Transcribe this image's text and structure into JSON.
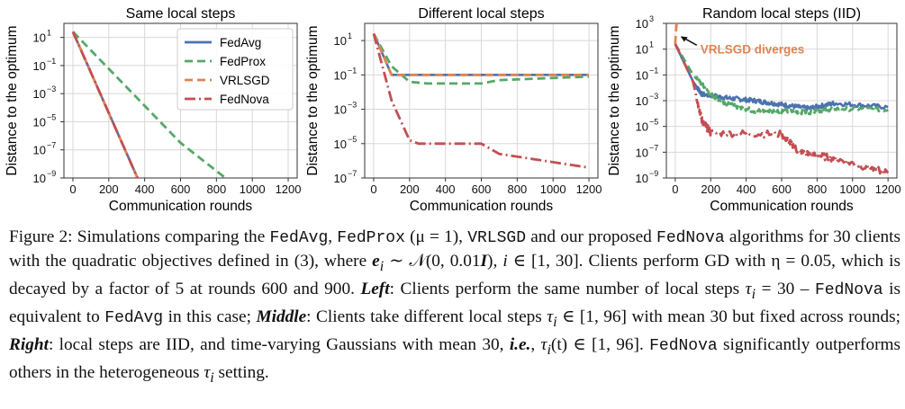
{
  "figure": {
    "colors": {
      "FedAvg": "#4c72b0",
      "FedProx": "#55a868",
      "VRLSGD": "#dd8452",
      "FedNova": "#c44e52"
    },
    "annotation": "VRLSGD diverges",
    "legend_placement": "upper-right of left panel"
  },
  "chart_data": [
    {
      "type": "line",
      "title": "Same local steps",
      "xlabel": "Communication rounds",
      "ylabel": "Distance to the optimum",
      "xlim": [
        -50,
        1250
      ],
      "ylim_log10": [
        -9,
        2
      ],
      "yscale": "log",
      "x_ticks": [
        "0",
        "200",
        "400",
        "600",
        "800",
        "1000",
        "1200"
      ],
      "y_tick_exps": [
        "1",
        "-1",
        "-3",
        "-5",
        "-7",
        "-9"
      ],
      "grid": true,
      "legend": [
        "FedAvg",
        "FedProx",
        "VRLSGD",
        "FedNova"
      ],
      "series": [
        {
          "name": "FedAvg",
          "x": [
            0,
            360
          ],
          "log10_y": [
            1.4,
            -9
          ]
        },
        {
          "name": "FedProx",
          "x": [
            0,
            600,
            850
          ],
          "log10_y": [
            1.4,
            -6.5,
            -9
          ]
        },
        {
          "name": "VRLSGD",
          "x": [
            0,
            360
          ],
          "log10_y": [
            1.4,
            -9
          ]
        },
        {
          "name": "FedNova",
          "x": [
            0,
            360
          ],
          "log10_y": [
            1.4,
            -9
          ]
        }
      ]
    },
    {
      "type": "line",
      "title": "Different local steps",
      "xlabel": "Communication rounds",
      "ylabel": "Distance to the optimum",
      "xlim": [
        -50,
        1250
      ],
      "ylim_log10": [
        -7,
        2
      ],
      "yscale": "log",
      "x_ticks": [
        "0",
        "200",
        "400",
        "600",
        "800",
        "1000",
        "1200"
      ],
      "y_tick_exps": [
        "1",
        "-1",
        "-3",
        "-5",
        "-7"
      ],
      "grid": true,
      "series": [
        {
          "name": "FedAvg",
          "x": [
            0,
            100,
            200,
            600,
            1200
          ],
          "log10_y": [
            1.4,
            -1,
            -1,
            -1,
            -1
          ]
        },
        {
          "name": "FedProx",
          "x": [
            0,
            100,
            200,
            300,
            600,
            700,
            1200
          ],
          "log10_y": [
            1.4,
            -0.5,
            -1.4,
            -1.5,
            -1.5,
            -1.3,
            -1.1
          ]
        },
        {
          "name": "VRLSGD",
          "x": [
            0,
            100,
            200,
            600,
            1200
          ],
          "log10_y": [
            1.4,
            -1,
            -1,
            -1,
            -1
          ]
        },
        {
          "name": "FedNova",
          "x": [
            0,
            100,
            200,
            250,
            600,
            700,
            1200
          ],
          "log10_y": [
            1.4,
            -2.5,
            -4.8,
            -5.0,
            -5.0,
            -5.6,
            -6.4
          ]
        }
      ]
    },
    {
      "type": "line",
      "title": "Random local steps (IID)",
      "xlabel": "Communication rounds",
      "ylabel": "Distance to the optimum",
      "xlim": [
        -50,
        1250
      ],
      "ylim_log10": [
        -9,
        3
      ],
      "yscale": "log",
      "x_ticks": [
        "0",
        "200",
        "400",
        "600",
        "800",
        "1000",
        "1200"
      ],
      "y_tick_exps": [
        "3",
        "1",
        "-1",
        "-3",
        "-5",
        "-7",
        "-9"
      ],
      "grid": true,
      "series": [
        {
          "name": "FedAvg",
          "x": [
            0,
            100,
            150,
            300,
            450,
            600,
            750,
            900,
            1200
          ],
          "log10_y": [
            1.4,
            -1.5,
            -2.5,
            -2.8,
            -3.0,
            -3.3,
            -3.6,
            -3.2,
            -3.5
          ]
        },
        {
          "name": "FedProx",
          "x": [
            0,
            100,
            200,
            300,
            450,
            600,
            750,
            900,
            1200
          ],
          "log10_y": [
            1.4,
            -1.0,
            -2.5,
            -3.3,
            -3.8,
            -3.8,
            -3.9,
            -3.6,
            -3.7
          ]
        },
        {
          "name": "VRLSGD",
          "x": [
            0,
            5,
            10
          ],
          "log10_y": [
            1.4,
            2.5,
            3.3
          ]
        },
        {
          "name": "FedNova",
          "x": [
            0,
            100,
            150,
            200,
            600,
            700,
            900,
            1200
          ],
          "log10_y": [
            1.4,
            -1.5,
            -4.5,
            -5.5,
            -5.6,
            -7.0,
            -7.5,
            -8.6
          ]
        }
      ]
    }
  ],
  "caption": {
    "intro": "Figure 2: Simulations comparing the ",
    "m_fedavg": "FedAvg",
    "sep1": ", ",
    "m_fedprox": "FedProx",
    "mu": " (μ = 1), ",
    "m_vrlsgd": "VRLSGD",
    "and_ours": " and our proposed ",
    "m_fednova": "FedNova",
    "line2_a": "algorithms for 30 clients with the quadratic objectives defined in (3), where ",
    "line2_math": "e",
    "line2_sub": "i",
    "line2_b": " ∼ 𝒩(0, 0.01",
    "line2_I": "I",
    "line2_c": "), ",
    "line2_i": "i",
    "line2_d": " ∈",
    "line3": "[1, 30]. Clients perform GD with η = 0.05, which is decayed by a factor of 5 at rounds 600 and 900.",
    "left_label": "Left",
    "left_text": ": Clients perform the same number of local steps ",
    "tau_i": "τ",
    "i": "i",
    "eq30": " = 30 – ",
    "left_tail": " is equivalent to ",
    "in": " in",
    "line5": "this case; ",
    "middle_label": "Middle",
    "middle_text": ": Clients take different local steps ",
    "middle_range": " ∈ [1, 96] with mean 30 but fixed across rounds;",
    "right_label": "Right",
    "right_text": ": local steps are IID, and time-varying Gaussians with mean 30, ",
    "ie": "i.e.",
    "right_mid": ", ",
    "tau_t": "(t) ∈ [1, 96]. ",
    "line8": "significantly outperforms others in the heterogeneous ",
    "line8_end": " setting."
  }
}
